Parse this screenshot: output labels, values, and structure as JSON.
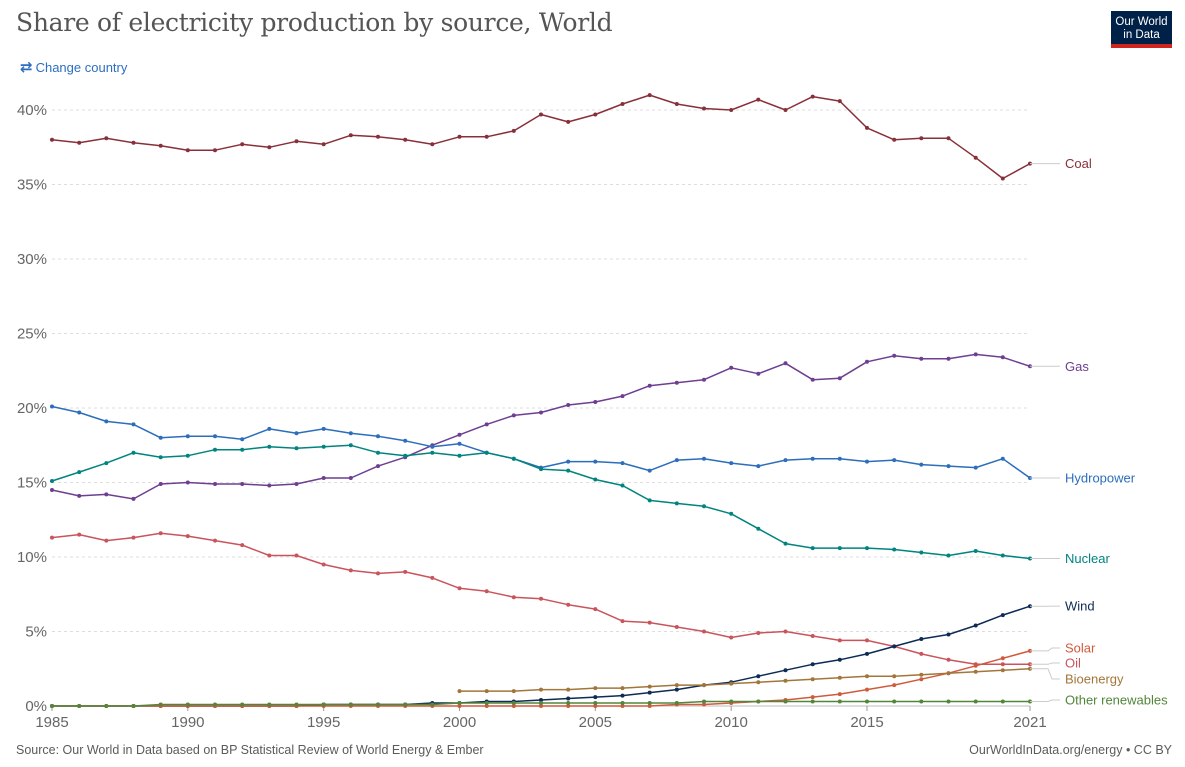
{
  "header": {
    "title": "Share of electricity production by source, World",
    "change_country_label": "Change country",
    "logo_line1": "Our World",
    "logo_line2": "in Data"
  },
  "footer": {
    "source": "Source: Our World in Data based on BP Statistical Review of World Energy & Ember",
    "link": "OurWorldInData.org/energy • CC BY"
  },
  "colors": {
    "logo_bg": "#002147",
    "logo_accent": "#ce261e",
    "link": "#2d6ec0"
  },
  "chart_data": {
    "type": "line",
    "title": "Share of electricity production by source, World",
    "xlim": [
      1985,
      2021
    ],
    "ylim": [
      0,
      40
    ],
    "x_ticks": [
      1985,
      1990,
      1995,
      2000,
      2005,
      2010,
      2015,
      2021
    ],
    "y_ticks": [
      0,
      5,
      10,
      15,
      20,
      25,
      30,
      35,
      40
    ],
    "y_tick_labels": [
      "0%",
      "5%",
      "10%",
      "15%",
      "20%",
      "25%",
      "30%",
      "35%",
      "40%"
    ],
    "grid": "horizontal dashed",
    "legend": "right (inline labels at line ends)",
    "series": [
      {
        "name": "Coal",
        "color": "#883039",
        "start_year": 1985,
        "values": [
          38.0,
          37.8,
          38.1,
          37.8,
          37.6,
          37.3,
          37.3,
          37.7,
          37.5,
          37.9,
          37.7,
          38.3,
          38.2,
          38.0,
          37.7,
          38.2,
          38.2,
          38.6,
          39.7,
          39.2,
          39.7,
          40.4,
          41.0,
          40.4,
          40.1,
          40.0,
          40.7,
          40.0,
          40.9,
          40.6,
          38.8,
          38.0,
          38.1,
          38.1,
          36.8,
          35.4,
          36.4
        ]
      },
      {
        "name": "Gas",
        "color": "#6d3e91",
        "start_year": 1985,
        "values": [
          14.5,
          14.1,
          14.2,
          13.9,
          14.9,
          15.0,
          14.9,
          14.9,
          14.8,
          14.9,
          15.3,
          15.3,
          16.1,
          16.7,
          17.5,
          18.2,
          18.9,
          19.5,
          19.7,
          20.2,
          20.4,
          20.8,
          21.5,
          21.7,
          21.9,
          22.7,
          22.3,
          23.0,
          21.9,
          22.0,
          23.1,
          23.5,
          23.3,
          23.3,
          23.6,
          23.4,
          22.8
        ]
      },
      {
        "name": "Hydropower",
        "color": "#2c6dbc",
        "start_year": 1985,
        "values": [
          20.1,
          19.7,
          19.1,
          18.9,
          18.0,
          18.1,
          18.1,
          17.9,
          18.6,
          18.3,
          18.6,
          18.3,
          18.1,
          17.8,
          17.4,
          17.6,
          17.0,
          16.6,
          16.0,
          16.4,
          16.4,
          16.3,
          15.8,
          16.5,
          16.6,
          16.3,
          16.1,
          16.5,
          16.6,
          16.6,
          16.4,
          16.5,
          16.2,
          16.1,
          16.0,
          16.6,
          15.3
        ]
      },
      {
        "name": "Nuclear",
        "color": "#00847e",
        "start_year": 1985,
        "values": [
          15.1,
          15.7,
          16.3,
          17.0,
          16.7,
          16.8,
          17.2,
          17.2,
          17.4,
          17.3,
          17.4,
          17.5,
          17.0,
          16.8,
          17.0,
          16.8,
          17.0,
          16.6,
          15.9,
          15.8,
          15.2,
          14.8,
          13.8,
          13.6,
          13.4,
          12.9,
          11.9,
          10.9,
          10.6,
          10.6,
          10.6,
          10.5,
          10.3,
          10.1,
          10.4,
          10.1,
          9.9
        ]
      },
      {
        "name": "Oil",
        "color": "#c9545c",
        "start_year": 1985,
        "values": [
          11.3,
          11.5,
          11.1,
          11.3,
          11.6,
          11.4,
          11.1,
          10.8,
          10.1,
          10.1,
          9.5,
          9.1,
          8.9,
          9.0,
          8.6,
          7.9,
          7.7,
          7.3,
          7.2,
          6.8,
          6.5,
          5.7,
          5.6,
          5.3,
          5.0,
          4.6,
          4.9,
          5.0,
          4.7,
          4.4,
          4.4,
          4.0,
          3.5,
          3.1,
          2.8,
          2.8,
          2.8
        ]
      },
      {
        "name": "Wind",
        "color": "#0d2b55",
        "start_year": 1985,
        "values": [
          0.0,
          0.0,
          0.0,
          0.0,
          0.0,
          0.0,
          0.0,
          0.0,
          0.0,
          0.0,
          0.1,
          0.1,
          0.1,
          0.1,
          0.2,
          0.2,
          0.3,
          0.3,
          0.4,
          0.5,
          0.6,
          0.7,
          0.9,
          1.1,
          1.4,
          1.6,
          2.0,
          2.4,
          2.8,
          3.1,
          3.5,
          4.0,
          4.5,
          4.8,
          5.4,
          6.1,
          6.7
        ]
      },
      {
        "name": "Solar",
        "color": "#d05a3c",
        "start_year": 1985,
        "values": [
          0.0,
          0.0,
          0.0,
          0.0,
          0.0,
          0.0,
          0.0,
          0.0,
          0.0,
          0.0,
          0.0,
          0.0,
          0.0,
          0.0,
          0.0,
          0.0,
          0.0,
          0.0,
          0.0,
          0.0,
          0.0,
          0.0,
          0.0,
          0.1,
          0.1,
          0.2,
          0.3,
          0.4,
          0.6,
          0.8,
          1.1,
          1.4,
          1.8,
          2.2,
          2.7,
          3.2,
          3.7
        ]
      },
      {
        "name": "Bioenergy",
        "color": "#a2763a",
        "start_year": 2000,
        "values": [
          1.0,
          1.0,
          1.0,
          1.1,
          1.1,
          1.2,
          1.2,
          1.3,
          1.4,
          1.4,
          1.5,
          1.6,
          1.7,
          1.8,
          1.9,
          2.0,
          2.0,
          2.1,
          2.2,
          2.3,
          2.4,
          2.5
        ]
      },
      {
        "name": "Other renewables",
        "color": "#52863b",
        "start_year": 1985,
        "values": [
          0.0,
          0.0,
          0.0,
          0.0,
          0.1,
          0.1,
          0.1,
          0.1,
          0.1,
          0.1,
          0.1,
          0.1,
          0.1,
          0.1,
          0.1,
          0.2,
          0.2,
          0.2,
          0.2,
          0.2,
          0.2,
          0.2,
          0.2,
          0.2,
          0.3,
          0.3,
          0.3,
          0.3,
          0.3,
          0.3,
          0.3,
          0.3,
          0.3,
          0.3,
          0.3,
          0.3,
          0.3
        ]
      }
    ]
  }
}
